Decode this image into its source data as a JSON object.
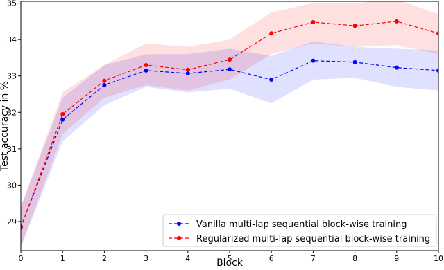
{
  "chart_data": {
    "type": "line",
    "x_label": "Block",
    "y_label": "Test accuracy in %",
    "x": [
      0,
      1,
      2,
      3,
      4,
      5,
      6,
      7,
      8,
      9,
      10
    ],
    "xlim": [
      0,
      10
    ],
    "xticks": [
      0,
      1,
      2,
      3,
      4,
      5,
      6,
      7,
      8,
      9,
      10
    ],
    "ylim": [
      28.2,
      35.05
    ],
    "yticks": [
      29,
      30,
      31,
      32,
      33,
      34,
      35
    ],
    "legend": "lower right",
    "series": [
      {
        "name": "Vanilla multi-lap sequential block-wise training",
        "color": "#0000ff",
        "values": [
          28.85,
          31.8,
          32.75,
          33.15,
          33.07,
          33.18,
          32.9,
          33.42,
          33.38,
          33.23,
          33.15
        ],
        "lower": [
          28.3,
          31.2,
          32.2,
          32.7,
          32.55,
          32.65,
          32.25,
          32.9,
          32.95,
          32.7,
          32.6
        ],
        "upper": [
          29.4,
          32.4,
          33.3,
          33.6,
          33.6,
          33.75,
          33.55,
          33.95,
          33.8,
          33.75,
          33.7
        ]
      },
      {
        "name": "Regularized multi-lap sequential block-wise training",
        "color": "#ff0000",
        "values": [
          28.83,
          31.95,
          32.87,
          33.3,
          33.17,
          33.45,
          34.17,
          34.48,
          34.38,
          34.5,
          34.17
        ],
        "lower": [
          28.3,
          31.4,
          32.4,
          32.75,
          32.6,
          32.9,
          33.6,
          33.9,
          33.8,
          33.85,
          33.6
        ],
        "upper": [
          29.4,
          32.55,
          33.3,
          33.9,
          33.8,
          34.0,
          34.75,
          35.0,
          35.0,
          35.1,
          34.7
        ]
      }
    ]
  }
}
